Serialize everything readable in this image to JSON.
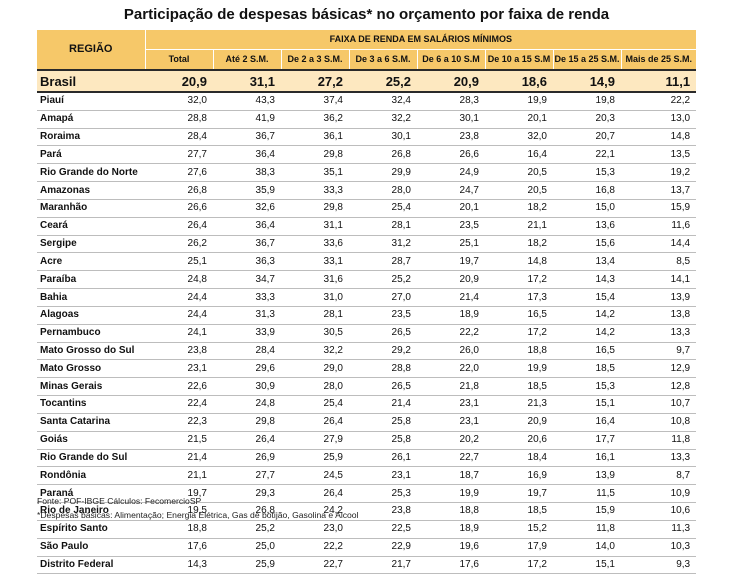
{
  "title": "Participação de despesas básicas* no orçamento por faixa de renda",
  "header": {
    "region": "REGIÃO",
    "band_group": "FAIXA DE RENDA EM SALÁRIOS MÍNIMOS",
    "columns": [
      "Total",
      "Até 2 S.M.",
      "De 2 a 3 S.M.",
      "De 3 a 6 S.M.",
      "De 6 a 10 S.M",
      "De 10 a 15 S.M",
      "De 15 a 25 S.M.",
      "Mais de 25 S.M."
    ]
  },
  "brasil": {
    "name": "Brasil",
    "values": [
      "20,9",
      "31,1",
      "27,2",
      "25,2",
      "20,9",
      "18,6",
      "14,9",
      "11,1"
    ]
  },
  "rows": [
    {
      "name": "Piauí",
      "values": [
        "32,0",
        "43,3",
        "37,4",
        "32,4",
        "28,3",
        "19,9",
        "19,8",
        "22,2"
      ]
    },
    {
      "name": "Amapá",
      "values": [
        "28,8",
        "41,9",
        "36,2",
        "32,2",
        "30,1",
        "20,1",
        "20,3",
        "13,0"
      ]
    },
    {
      "name": "Roraima",
      "values": [
        "28,4",
        "36,7",
        "36,1",
        "30,1",
        "23,8",
        "32,0",
        "20,7",
        "14,8"
      ]
    },
    {
      "name": "Pará",
      "values": [
        "27,7",
        "36,4",
        "29,8",
        "26,8",
        "26,6",
        "16,4",
        "22,1",
        "13,5"
      ]
    },
    {
      "name": "Rio Grande do Norte",
      "values": [
        "27,6",
        "38,3",
        "35,1",
        "29,9",
        "24,9",
        "20,5",
        "15,3",
        "19,2"
      ]
    },
    {
      "name": "Amazonas",
      "values": [
        "26,8",
        "35,9",
        "33,3",
        "28,0",
        "24,7",
        "20,5",
        "16,8",
        "13,7"
      ]
    },
    {
      "name": "Maranhão",
      "values": [
        "26,6",
        "32,6",
        "29,8",
        "25,4",
        "20,1",
        "18,2",
        "15,0",
        "15,9"
      ]
    },
    {
      "name": "Ceará",
      "values": [
        "26,4",
        "36,4",
        "31,1",
        "28,1",
        "23,5",
        "21,1",
        "13,6",
        "11,6"
      ]
    },
    {
      "name": "Sergipe",
      "values": [
        "26,2",
        "36,7",
        "33,6",
        "31,2",
        "25,1",
        "18,2",
        "15,6",
        "14,4"
      ]
    },
    {
      "name": "Acre",
      "values": [
        "25,1",
        "36,3",
        "33,1",
        "28,7",
        "19,7",
        "14,8",
        "13,4",
        "8,5"
      ]
    },
    {
      "name": "Paraíba",
      "values": [
        "24,8",
        "34,7",
        "31,6",
        "25,2",
        "20,9",
        "17,2",
        "14,3",
        "14,1"
      ]
    },
    {
      "name": "Bahia",
      "values": [
        "24,4",
        "33,3",
        "31,0",
        "27,0",
        "21,4",
        "17,3",
        "15,4",
        "13,9"
      ]
    },
    {
      "name": "Alagoas",
      "values": [
        "24,4",
        "31,3",
        "28,1",
        "23,5",
        "18,9",
        "16,5",
        "14,2",
        "13,8"
      ]
    },
    {
      "name": "Pernambuco",
      "values": [
        "24,1",
        "33,9",
        "30,5",
        "26,5",
        "22,2",
        "17,2",
        "14,2",
        "13,3"
      ]
    },
    {
      "name": "Mato Grosso do Sul",
      "values": [
        "23,8",
        "28,4",
        "32,2",
        "29,2",
        "26,0",
        "18,8",
        "16,5",
        "9,7"
      ]
    },
    {
      "name": "Mato Grosso",
      "values": [
        "23,1",
        "29,6",
        "29,0",
        "28,8",
        "22,0",
        "19,9",
        "18,5",
        "12,9"
      ]
    },
    {
      "name": "Minas Gerais",
      "values": [
        "22,6",
        "30,9",
        "28,0",
        "26,5",
        "21,8",
        "18,5",
        "15,3",
        "12,8"
      ]
    },
    {
      "name": "Tocantins",
      "values": [
        "22,4",
        "24,8",
        "25,4",
        "21,4",
        "23,1",
        "21,3",
        "15,1",
        "10,7"
      ]
    },
    {
      "name": "Santa Catarina",
      "values": [
        "22,3",
        "29,8",
        "26,4",
        "25,8",
        "23,1",
        "20,9",
        "16,4",
        "10,8"
      ]
    },
    {
      "name": "Goiás",
      "values": [
        "21,5",
        "26,4",
        "27,9",
        "25,8",
        "20,2",
        "20,6",
        "17,7",
        "11,8"
      ]
    },
    {
      "name": "Rio Grande do Sul",
      "values": [
        "21,4",
        "26,9",
        "25,9",
        "26,1",
        "22,7",
        "18,4",
        "16,1",
        "13,3"
      ]
    },
    {
      "name": "Rondônia",
      "values": [
        "21,1",
        "27,7",
        "24,5",
        "23,1",
        "18,7",
        "16,9",
        "13,9",
        "8,7"
      ]
    },
    {
      "name": "Paraná",
      "values": [
        "19,7",
        "29,3",
        "26,4",
        "25,3",
        "19,9",
        "19,7",
        "11,5",
        "10,9"
      ]
    },
    {
      "name": "Rio de Janeiro",
      "values": [
        "19,5",
        "26,8",
        "24,2",
        "23,8",
        "18,8",
        "18,5",
        "15,9",
        "10,6"
      ]
    },
    {
      "name": "Espírito Santo",
      "values": [
        "18,8",
        "25,2",
        "23,0",
        "22,5",
        "18,9",
        "15,2",
        "11,8",
        "11,3"
      ]
    },
    {
      "name": "São Paulo",
      "values": [
        "17,6",
        "25,0",
        "22,2",
        "22,9",
        "19,6",
        "17,9",
        "14,0",
        "10,3"
      ]
    },
    {
      "name": "Distrito Federal",
      "values": [
        "14,3",
        "25,9",
        "22,7",
        "21,7",
        "17,6",
        "17,2",
        "15,1",
        "9,3"
      ]
    }
  ],
  "footnotes": {
    "source": "Fonte: POF-IBGE Cálculos: FecomercioSP",
    "definition": "*Despesas básicas: Alimentação; Energia Elétrica, Gas de botijão, Gasolina e Alcool"
  }
}
